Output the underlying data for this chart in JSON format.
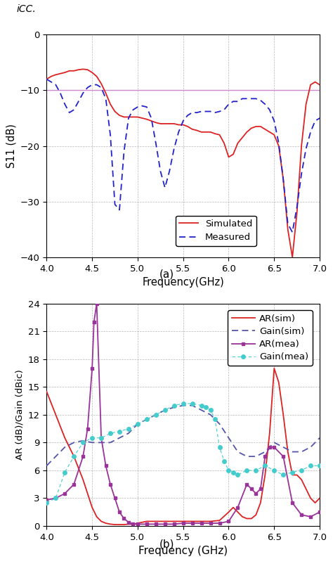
{
  "fig_width": 4.74,
  "fig_height": 8.22,
  "dpi": 100,
  "top_text": "iCC.",
  "subplot_a_label": "(a)",
  "subplot_b_label": "(b)",
  "plot_a": {
    "xlabel": "Frequency(GHz)",
    "ylabel": "S11 (dB)",
    "xlim": [
      4.0,
      7.0
    ],
    "ylim": [
      -40,
      0
    ],
    "yticks": [
      0,
      -10,
      -20,
      -30,
      -40
    ],
    "xticks": [
      4.0,
      4.5,
      5.0,
      5.5,
      6.0,
      6.5,
      7.0
    ],
    "hline_y": -10,
    "hline_color": "#cc88cc",
    "grid_color": "#999999",
    "simulated_color": "#dd2222",
    "measured_color": "#2222cc",
    "simulated_x": [
      4.0,
      4.05,
      4.1,
      4.15,
      4.2,
      4.25,
      4.3,
      4.35,
      4.4,
      4.45,
      4.5,
      4.55,
      4.6,
      4.65,
      4.7,
      4.75,
      4.8,
      4.85,
      4.9,
      4.95,
      5.0,
      5.05,
      5.1,
      5.15,
      5.2,
      5.25,
      5.3,
      5.35,
      5.4,
      5.45,
      5.5,
      5.55,
      5.6,
      5.65,
      5.7,
      5.75,
      5.8,
      5.85,
      5.9,
      5.95,
      6.0,
      6.05,
      6.1,
      6.15,
      6.2,
      6.25,
      6.3,
      6.35,
      6.4,
      6.45,
      6.5,
      6.55,
      6.6,
      6.65,
      6.7,
      6.75,
      6.8,
      6.85,
      6.9,
      6.95,
      7.0
    ],
    "simulated_y": [
      -8.0,
      -7.5,
      -7.2,
      -7.0,
      -6.8,
      -6.5,
      -6.5,
      -6.3,
      -6.2,
      -6.3,
      -6.8,
      -7.5,
      -8.8,
      -10.5,
      -12.5,
      -13.8,
      -14.5,
      -14.8,
      -14.8,
      -14.8,
      -14.8,
      -15.0,
      -15.2,
      -15.5,
      -15.8,
      -16.0,
      -16.0,
      -16.0,
      -16.0,
      -16.2,
      -16.2,
      -16.5,
      -17.0,
      -17.2,
      -17.5,
      -17.5,
      -17.5,
      -17.8,
      -18.0,
      -19.5,
      -22.0,
      -21.5,
      -19.5,
      -18.5,
      -17.5,
      -16.8,
      -16.5,
      -16.5,
      -17.0,
      -17.5,
      -18.0,
      -20.0,
      -26.0,
      -35.0,
      -40.0,
      -32.0,
      -20.0,
      -12.5,
      -9.0,
      -8.5,
      -9.0
    ],
    "measured_x": [
      4.0,
      4.05,
      4.1,
      4.15,
      4.2,
      4.25,
      4.3,
      4.35,
      4.4,
      4.45,
      4.5,
      4.55,
      4.6,
      4.65,
      4.7,
      4.75,
      4.8,
      4.85,
      4.9,
      4.95,
      5.0,
      5.05,
      5.1,
      5.15,
      5.2,
      5.25,
      5.3,
      5.35,
      5.4,
      5.45,
      5.5,
      5.55,
      5.6,
      5.65,
      5.7,
      5.75,
      5.8,
      5.85,
      5.9,
      5.95,
      6.0,
      6.05,
      6.1,
      6.15,
      6.2,
      6.25,
      6.3,
      6.35,
      6.4,
      6.45,
      6.5,
      6.55,
      6.6,
      6.65,
      6.7,
      6.75,
      6.8,
      6.85,
      6.9,
      6.95,
      7.0
    ],
    "measured_y": [
      -8.0,
      -8.5,
      -9.0,
      -10.5,
      -12.5,
      -14.0,
      -13.5,
      -12.0,
      -10.5,
      -9.5,
      -9.0,
      -9.0,
      -9.5,
      -11.5,
      -18.0,
      -30.5,
      -31.5,
      -21.0,
      -15.0,
      -13.5,
      -13.0,
      -12.8,
      -13.0,
      -15.0,
      -19.5,
      -24.5,
      -27.5,
      -24.5,
      -20.5,
      -17.5,
      -15.5,
      -14.5,
      -14.0,
      -14.0,
      -13.8,
      -13.8,
      -13.8,
      -14.0,
      -13.8,
      -13.5,
      -12.5,
      -12.0,
      -12.0,
      -11.5,
      -11.5,
      -11.5,
      -11.5,
      -11.8,
      -12.5,
      -13.5,
      -15.5,
      -19.5,
      -26.0,
      -34.0,
      -35.5,
      -31.0,
      -25.0,
      -20.5,
      -17.5,
      -15.5,
      -15.0
    ]
  },
  "plot_b": {
    "xlabel": "Frequency (GHz)",
    "ylabel": "AR (dB)/Gain (dBic)",
    "xlim": [
      4.0,
      7.0
    ],
    "ylim": [
      0,
      24
    ],
    "yticks": [
      0,
      3,
      6,
      9,
      12,
      15,
      18,
      21,
      24
    ],
    "xticks": [
      4.0,
      4.5,
      5.0,
      5.5,
      6.0,
      6.5,
      7.0
    ],
    "grid_color": "#999999",
    "ar_sim_color": "#dd2222",
    "gain_sim_color": "#5555aa",
    "ar_mea_color": "#993399",
    "gain_mea_color": "#44cccc",
    "ar_sim_x": [
      4.0,
      4.1,
      4.2,
      4.3,
      4.4,
      4.45,
      4.5,
      4.55,
      4.6,
      4.65,
      4.7,
      4.75,
      4.8,
      4.85,
      4.9,
      4.95,
      5.0,
      5.1,
      5.2,
      5.3,
      5.4,
      5.5,
      5.6,
      5.7,
      5.8,
      5.9,
      6.0,
      6.05,
      6.1,
      6.15,
      6.2,
      6.25,
      6.3,
      6.35,
      6.4,
      6.45,
      6.5,
      6.55,
      6.6,
      6.65,
      6.7,
      6.75,
      6.8,
      6.85,
      6.9,
      6.95,
      7.0
    ],
    "ar_sim_y": [
      14.5,
      12.0,
      9.5,
      7.5,
      5.0,
      3.5,
      2.0,
      1.0,
      0.5,
      0.3,
      0.2,
      0.15,
      0.15,
      0.15,
      0.2,
      0.2,
      0.3,
      0.5,
      0.5,
      0.5,
      0.5,
      0.5,
      0.5,
      0.5,
      0.5,
      0.6,
      1.5,
      2.0,
      1.5,
      1.0,
      0.8,
      0.8,
      1.2,
      2.5,
      5.5,
      10.0,
      17.0,
      15.5,
      12.0,
      8.0,
      5.5,
      5.5,
      5.0,
      4.0,
      3.0,
      2.5,
      3.0
    ],
    "gain_sim_x": [
      4.0,
      4.1,
      4.2,
      4.3,
      4.4,
      4.5,
      4.6,
      4.7,
      4.8,
      4.9,
      5.0,
      5.1,
      5.2,
      5.3,
      5.4,
      5.5,
      5.6,
      5.7,
      5.8,
      5.9,
      6.0,
      6.1,
      6.2,
      6.3,
      6.4,
      6.5,
      6.6,
      6.7,
      6.8,
      6.9,
      7.0
    ],
    "gain_sim_y": [
      6.5,
      7.5,
      8.5,
      9.0,
      9.2,
      9.0,
      9.0,
      9.0,
      9.5,
      10.0,
      11.0,
      11.5,
      12.0,
      12.5,
      12.8,
      13.0,
      13.0,
      12.5,
      12.0,
      11.0,
      9.5,
      8.0,
      7.5,
      7.5,
      8.0,
      9.0,
      8.5,
      8.0,
      8.0,
      8.5,
      9.5
    ],
    "ar_mea_x": [
      4.0,
      4.1,
      4.2,
      4.3,
      4.4,
      4.45,
      4.5,
      4.52,
      4.55,
      4.6,
      4.65,
      4.7,
      4.75,
      4.8,
      4.85,
      4.9,
      4.95,
      5.0,
      5.1,
      5.2,
      5.3,
      5.4,
      5.5,
      5.6,
      5.7,
      5.8,
      5.9,
      6.0,
      6.1,
      6.2,
      6.25,
      6.3,
      6.35,
      6.4,
      6.45,
      6.5,
      6.6,
      6.7,
      6.8,
      6.9,
      7.0
    ],
    "ar_mea_y": [
      2.8,
      3.0,
      3.5,
      4.5,
      7.5,
      10.5,
      17.0,
      22.0,
      24.0,
      9.5,
      6.5,
      4.5,
      3.0,
      1.5,
      0.8,
      0.4,
      0.2,
      0.2,
      0.2,
      0.2,
      0.2,
      0.2,
      0.3,
      0.3,
      0.3,
      0.3,
      0.3,
      0.5,
      2.0,
      4.5,
      4.0,
      3.5,
      4.0,
      7.5,
      8.5,
      8.5,
      7.5,
      2.5,
      1.2,
      1.0,
      1.5
    ],
    "gain_mea_x": [
      4.0,
      4.1,
      4.2,
      4.3,
      4.4,
      4.5,
      4.6,
      4.7,
      4.8,
      4.9,
      5.0,
      5.1,
      5.2,
      5.3,
      5.4,
      5.5,
      5.6,
      5.7,
      5.75,
      5.8,
      5.85,
      5.9,
      5.95,
      6.0,
      6.05,
      6.1,
      6.2,
      6.3,
      6.4,
      6.5,
      6.6,
      6.7,
      6.8,
      6.9,
      7.0
    ],
    "gain_mea_y": [
      2.5,
      3.0,
      5.8,
      7.5,
      9.0,
      9.5,
      9.5,
      10.0,
      10.2,
      10.5,
      11.0,
      11.5,
      12.0,
      12.5,
      13.0,
      13.2,
      13.2,
      13.0,
      12.8,
      12.5,
      11.5,
      8.5,
      7.0,
      6.0,
      5.8,
      5.5,
      6.0,
      6.0,
      6.5,
      6.0,
      5.5,
      5.8,
      6.0,
      6.5,
      6.5
    ]
  }
}
